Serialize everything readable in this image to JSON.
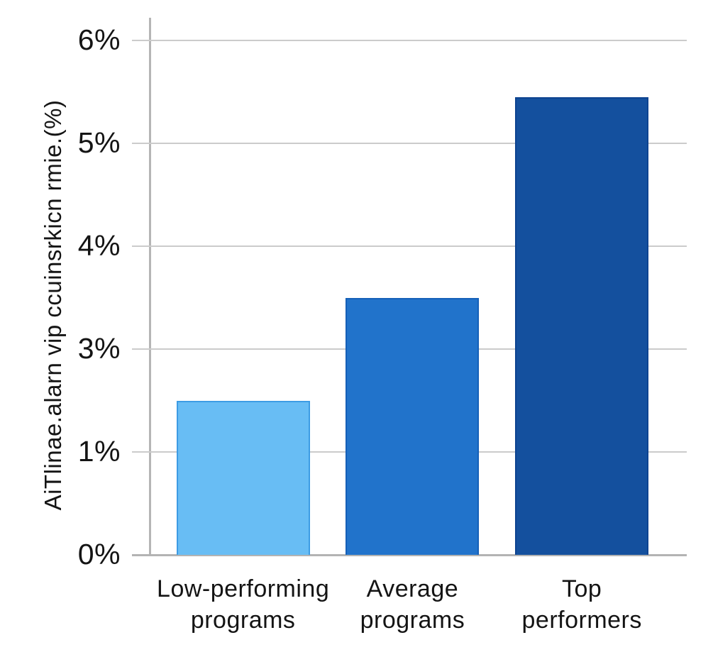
{
  "chart_data": {
    "type": "bar",
    "title": "",
    "ylabel": "AiTlinae.alarn vip ccuinsrkicn rmie.(%)",
    "xlabel": "",
    "categories": [
      "Low-performing programs",
      "Average programs",
      "Top performers"
    ],
    "category_label_lines": [
      [
        "Low-performing",
        "programs"
      ],
      [
        "Average",
        "programs"
      ],
      [
        "Top",
        "performers"
      ]
    ],
    "values": [
      2,
      3.5,
      5.45
    ],
    "unit": "%",
    "ytick_labels_top_to_bottom": [
      "6%",
      "5%",
      "4%",
      "3%",
      "1%",
      "0%"
    ],
    "ytick_values_bottom_to_top": [
      0,
      1,
      3,
      4,
      5,
      6
    ],
    "ylim": [
      0,
      6
    ],
    "grid": "horizontal gridlines on",
    "legend": "none",
    "bar_colors": [
      "#68bdf4",
      "#2173cb",
      "#14509e"
    ],
    "bar_border_colors": [
      "#3d9ce4",
      "#1560b8",
      "#0d4390"
    ],
    "axis_color": "#b5b5b5",
    "gridline_color": "#cbcbcb",
    "text_color": "#141414",
    "background_color": "#ffffff"
  }
}
